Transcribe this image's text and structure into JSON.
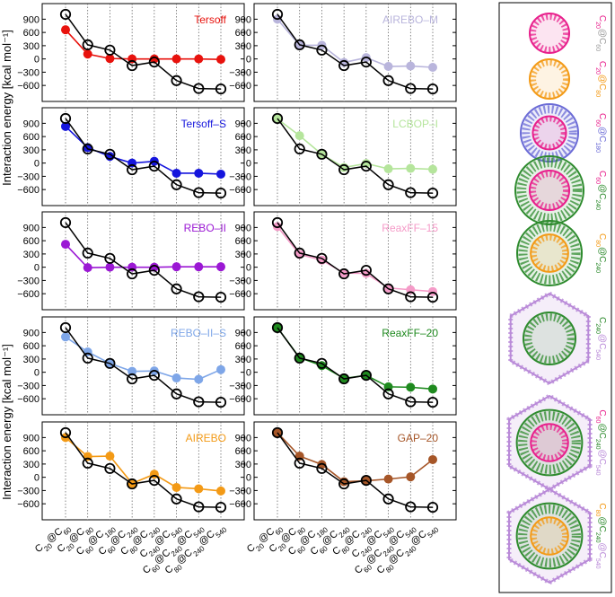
{
  "chart_data": {
    "type": "line",
    "ylabel": "Interaction energy [kcal mol⁻¹]",
    "ylim": [
      -800,
      1050
    ],
    "yticks": [
      -600,
      -300,
      0,
      300,
      600,
      900
    ],
    "grid": "vertical dotted lines at each category",
    "categories": [
      {
        "parts": [
          [
            "C",
            "20"
          ],
          [
            "@C",
            "60"
          ]
        ]
      },
      {
        "parts": [
          [
            "C",
            "20"
          ],
          [
            "@C",
            "80"
          ]
        ]
      },
      {
        "parts": [
          [
            "C",
            "60"
          ],
          [
            "@C",
            "180"
          ]
        ]
      },
      {
        "parts": [
          [
            "C",
            "60"
          ],
          [
            "@C",
            "240"
          ]
        ]
      },
      {
        "parts": [
          [
            "C",
            "80"
          ],
          [
            "@C",
            "240"
          ]
        ]
      },
      {
        "parts": [
          [
            "C",
            "240"
          ],
          [
            "@C",
            "540"
          ]
        ]
      },
      {
        "parts": [
          [
            "C",
            "60"
          ],
          [
            "@C",
            "240"
          ],
          [
            "@C",
            "540"
          ]
        ]
      },
      {
        "parts": [
          [
            "C",
            "80"
          ],
          [
            "@C",
            "240"
          ],
          [
            "@C",
            "540"
          ]
        ]
      }
    ],
    "reference": {
      "values": [
        1010,
        320,
        200,
        -150,
        -70,
        -490,
        -670,
        -680
      ],
      "color": "#000000"
    },
    "panels": [
      {
        "model": "Tersoff",
        "color": "#e8120d",
        "values": [
          660,
          110,
          10,
          0,
          0,
          0,
          0,
          -10
        ]
      },
      {
        "model": "AIREBO–M",
        "color": "#b9b5dc",
        "values": [
          900,
          310,
          310,
          -80,
          30,
          -170,
          -160,
          -190
        ]
      },
      {
        "model": "Tersoff–S",
        "color": "#1515dd",
        "values": [
          830,
          350,
          150,
          0,
          40,
          -230,
          -230,
          -250
        ]
      },
      {
        "model": "LCBOP–I",
        "color": "#b5e59c",
        "values": [
          1000,
          620,
          200,
          -100,
          -10,
          -130,
          -120,
          -140
        ]
      },
      {
        "model": "REBO–II",
        "color": "#9b18d4",
        "values": [
          520,
          -10,
          0,
          0,
          0,
          10,
          10,
          10
        ]
      },
      {
        "model": "ReaxFF–15",
        "color": "#f59bc8",
        "values": [
          920,
          290,
          160,
          -130,
          -140,
          -470,
          -510,
          -550
        ]
      },
      {
        "model": "REBO–II–S",
        "color": "#7ea6e8",
        "values": [
          800,
          460,
          200,
          20,
          30,
          -130,
          -160,
          60
        ]
      },
      {
        "model": "ReaxFF–20",
        "color": "#1f8a1f",
        "values": [
          1010,
          330,
          150,
          -140,
          -70,
          -330,
          -340,
          -380
        ]
      },
      {
        "model": "AIREBO",
        "color": "#f39a16",
        "values": [
          900,
          470,
          480,
          -140,
          70,
          -230,
          -260,
          -310
        ]
      },
      {
        "model": "GAP–20",
        "color": "#a65628",
        "values": [
          1010,
          480,
          290,
          -100,
          -80,
          -40,
          10,
          400
        ]
      }
    ]
  },
  "side_panel": {
    "labels": [
      {
        "parts": [
          [
            "C",
            "20",
            "#e8208c"
          ],
          [
            "@C",
            "60",
            "#9a9a9a"
          ]
        ]
      },
      {
        "parts": [
          [
            "C",
            "20",
            "#e8208c"
          ],
          [
            "@C",
            "80",
            "#f39a16"
          ]
        ]
      },
      {
        "parts": [
          [
            "C",
            "60",
            "#e8208c"
          ],
          [
            "@C",
            "180",
            "#6b6bd6"
          ]
        ]
      },
      {
        "parts": [
          [
            "C",
            "60",
            "#e8208c"
          ],
          [
            "@C",
            "240",
            "#2e8b2e"
          ]
        ]
      },
      {
        "parts": [
          [
            "C",
            "80",
            "#f39a16"
          ],
          [
            "@C",
            "240",
            "#2e8b2e"
          ]
        ]
      },
      {
        "parts": [
          [
            "C",
            "240",
            "#2e8b2e"
          ],
          [
            "@C",
            "540",
            "#b98ad8"
          ]
        ]
      },
      {
        "parts": [
          [
            "C",
            "60",
            "#e8208c"
          ],
          [
            "@C",
            "240",
            "#2e8b2e"
          ],
          [
            "@C",
            "540",
            "#b98ad8"
          ]
        ]
      },
      {
        "parts": [
          [
            "C",
            "80",
            "#f39a16"
          ],
          [
            "@C",
            "240",
            "#2e8b2e"
          ],
          [
            "@C",
            "540",
            "#b98ad8"
          ]
        ]
      }
    ],
    "molecules": [
      {
        "name": "c20-at-c60",
        "shells": [
          {
            "color": "#e8208c"
          }
        ]
      },
      {
        "name": "c20-at-c80",
        "shells": [
          {
            "color": "#f39a16"
          }
        ]
      },
      {
        "name": "c60-at-c180",
        "shells": [
          {
            "color": "#6b6bd6"
          },
          {
            "color": "#e8208c"
          }
        ]
      },
      {
        "name": "c60-at-c240",
        "shells": [
          {
            "color": "#2e8b2e"
          },
          {
            "color": "#e8208c"
          }
        ]
      },
      {
        "name": "c80-at-c240",
        "shells": [
          {
            "color": "#2e8b2e"
          },
          {
            "color": "#f39a16"
          }
        ]
      },
      {
        "name": "c240-at-c540",
        "shells": [
          {
            "color": "#b98ad8"
          },
          {
            "color": "#2e8b2e"
          }
        ]
      },
      {
        "name": "c60-at-c240-at-c540",
        "shells": [
          {
            "color": "#b98ad8"
          },
          {
            "color": "#2e8b2e"
          },
          {
            "color": "#e8208c"
          }
        ]
      },
      {
        "name": "c80-at-c240-at-c540",
        "shells": [
          {
            "color": "#b98ad8"
          },
          {
            "color": "#2e8b2e"
          },
          {
            "color": "#f39a16"
          }
        ]
      }
    ]
  }
}
